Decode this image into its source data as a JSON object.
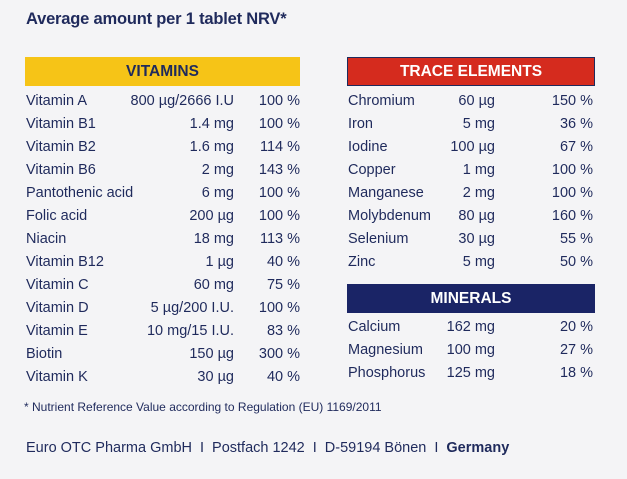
{
  "title": "Average amount per 1 tablet NRV*",
  "vitamins": {
    "header": "VITAMINS",
    "rows": [
      {
        "name": "Vitamin A",
        "amount": "800 µg/2666 I.U",
        "nrv": "100 %"
      },
      {
        "name": "Vitamin B1",
        "amount": "1.4 mg",
        "nrv": "100 %"
      },
      {
        "name": "Vitamin B2",
        "amount": "1.6 mg",
        "nrv": "114 %"
      },
      {
        "name": "Vitamin B6",
        "amount": "2 mg",
        "nrv": "143 %"
      },
      {
        "name": "Pantothenic acid",
        "amount": "6 mg",
        "nrv": "100 %"
      },
      {
        "name": "Folic acid",
        "amount": "200 µg",
        "nrv": "100 %"
      },
      {
        "name": "Niacin",
        "amount": "18 mg",
        "nrv": "113 %"
      },
      {
        "name": "Vitamin B12",
        "amount": "1 µg",
        "nrv": "40 %"
      },
      {
        "name": "Vitamin C",
        "amount": "60 mg",
        "nrv": "75 %"
      },
      {
        "name": "Vitamin D",
        "amount": "5 µg/200 I.U.",
        "nrv": "100 %"
      },
      {
        "name": "Vitamin E",
        "amount": "10 mg/15 I.U.",
        "nrv": "83 %"
      },
      {
        "name": "Biotin",
        "amount": "150 µg",
        "nrv": "300 %"
      },
      {
        "name": "Vitamin K",
        "amount": "30 µg",
        "nrv": "40 %"
      }
    ]
  },
  "trace_elements": {
    "header": "TRACE ELEMENTS",
    "rows": [
      {
        "name": "Chromium",
        "amount": "60 µg",
        "nrv": "150 %"
      },
      {
        "name": "Iron",
        "amount": "5 mg",
        "nrv": "36 %"
      },
      {
        "name": "Iodine",
        "amount": "100 µg",
        "nrv": "67 %"
      },
      {
        "name": "Copper",
        "amount": "1 mg",
        "nrv": "100 %"
      },
      {
        "name": "Manganese",
        "amount": "2 mg",
        "nrv": "100 %"
      },
      {
        "name": "Molybdenum",
        "amount": "80 µg",
        "nrv": "160 %"
      },
      {
        "name": "Selenium",
        "amount": "30 µg",
        "nrv": "55 %"
      },
      {
        "name": "Zinc",
        "amount": "5 mg",
        "nrv": "50 %"
      }
    ]
  },
  "minerals": {
    "header": "MINERALS",
    "rows": [
      {
        "name": "Calcium",
        "amount": "162 mg",
        "nrv": "20 %"
      },
      {
        "name": "Magnesium",
        "amount": "100 mg",
        "nrv": "27 %"
      },
      {
        "name": "Phosphorus",
        "amount": "125 mg",
        "nrv": "18 %"
      }
    ]
  },
  "footnote": "*  Nutrient Reference Value according to Regulation (EU) 1169/2011",
  "footer": {
    "company": "Euro OTC Pharma GmbH",
    "separator": "I",
    "po_box": "Postfach 1242",
    "city": "D-59194 Bönen",
    "country": "Germany"
  },
  "colors": {
    "vitamins_header_bg": "#f6c417",
    "trace_header_bg": "#d52b1e",
    "minerals_header_bg": "#1a2466",
    "text": "#1f2a5c",
    "background": "#f4f4f6"
  }
}
